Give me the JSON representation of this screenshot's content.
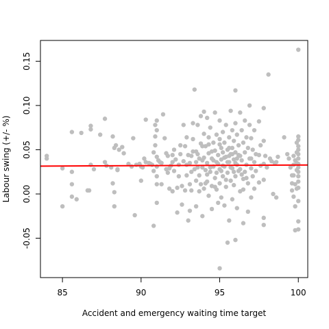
{
  "chart_data": {
    "type": "scatter",
    "title": "",
    "xlabel": "Accident and emergency waiting time target",
    "ylabel": "Labour swing (+/- %)",
    "xlim": [
      83.6,
      100.6
    ],
    "ylim": [
      -0.0945,
      0.1735
    ],
    "x_ticks": [
      85,
      90,
      95,
      100
    ],
    "x_tick_labels": [
      "85",
      "90",
      "95",
      "100"
    ],
    "y_ticks": [
      -0.05,
      0.0,
      0.05,
      0.1,
      0.15
    ],
    "y_tick_labels": [
      "-0.05",
      "0.00",
      "0.05",
      "0.10",
      "0.15"
    ],
    "grid": false,
    "point_color": "#bebebe",
    "trend_color": "#ff0000",
    "trend_line": {
      "x": [
        83.6,
        100.6
      ],
      "y": [
        0.0315,
        0.0327
      ]
    },
    "points": [
      [
        84.0,
        0.043
      ],
      [
        84.0,
        0.04
      ],
      [
        85.0,
        0.029
      ],
      [
        85.0,
        -0.014
      ],
      [
        85.6,
        0.07
      ],
      [
        85.6,
        0.025
      ],
      [
        85.6,
        0.011
      ],
      [
        85.6,
        -0.003
      ],
      [
        85.9,
        -0.006
      ],
      [
        86.2,
        0.069
      ],
      [
        86.6,
        0.004
      ],
      [
        86.7,
        0.004
      ],
      [
        86.8,
        0.077
      ],
      [
        86.8,
        0.073
      ],
      [
        86.8,
        0.033
      ],
      [
        87.0,
        0.028
      ],
      [
        87.4,
        0.067
      ],
      [
        87.7,
        0.085
      ],
      [
        87.7,
        0.036
      ],
      [
        87.8,
        0.032
      ],
      [
        88.1,
        0.03
      ],
      [
        88.2,
        0.012
      ],
      [
        88.2,
        0.065
      ],
      [
        88.3,
        0.052
      ],
      [
        88.3,
        0.002
      ],
      [
        88.3,
        -0.014
      ],
      [
        88.4,
        0.055
      ],
      [
        88.5,
        0.027
      ],
      [
        88.6,
        0.05
      ],
      [
        88.5,
        0.028
      ],
      [
        88.8,
        0.053
      ],
      [
        88.9,
        0.046
      ],
      [
        89.2,
        0.034
      ],
      [
        89.4,
        0.031
      ],
      [
        89.5,
        0.063
      ],
      [
        89.6,
        -0.024
      ],
      [
        89.7,
        0.033
      ],
      [
        89.9,
        0.034
      ],
      [
        90.0,
        0.031
      ],
      [
        90.1,
        0.03
      ],
      [
        90.0,
        0.015
      ],
      [
        90.2,
        0.04
      ],
      [
        90.3,
        0.036
      ],
      [
        90.3,
        0.084
      ],
      [
        90.5,
        0.035
      ],
      [
        90.6,
        0.034
      ],
      [
        90.7,
        0.033
      ],
      [
        90.8,
        0.047
      ],
      [
        90.8,
        0.026
      ],
      [
        90.8,
        -0.036
      ],
      [
        90.9,
        0.078
      ],
      [
        90.9,
        0.065
      ],
      [
        90.9,
        0.055
      ],
      [
        91.0,
        0.083
      ],
      [
        91.0,
        0.072
      ],
      [
        91.0,
        0.042
      ],
      [
        91.0,
        0.031
      ],
      [
        91.0,
        0.02
      ],
      [
        91.0,
        0.011
      ],
      [
        91.0,
        -0.01
      ],
      [
        91.1,
        0.038
      ],
      [
        91.2,
        0.036
      ],
      [
        91.3,
        0.035
      ],
      [
        91.3,
        0.011
      ],
      [
        91.4,
        0.09
      ],
      [
        91.5,
        0.063
      ],
      [
        91.6,
        0.046
      ],
      [
        91.7,
        0.043
      ],
      [
        91.7,
        0.024
      ],
      [
        91.8,
        0.029
      ],
      [
        91.8,
        0.006
      ],
      [
        91.9,
        0.032
      ],
      [
        92.0,
        0.036
      ],
      [
        92.0,
        0.003
      ],
      [
        92.1,
        0.05
      ],
      [
        92.1,
        0.026
      ],
      [
        92.2,
        0.039
      ],
      [
        92.3,
        0.007
      ],
      [
        92.3,
        -0.021
      ],
      [
        92.4,
        0.033
      ],
      [
        92.5,
        0.055
      ],
      [
        92.5,
        0.045
      ],
      [
        92.6,
        0.009
      ],
      [
        92.6,
        -0.012
      ],
      [
        92.7,
        0.078
      ],
      [
        92.7,
        0.037
      ],
      [
        92.8,
        0.004
      ],
      [
        92.8,
        0.054
      ],
      [
        92.9,
        0.064
      ],
      [
        92.9,
        0.021
      ],
      [
        93.0,
        0.044
      ],
      [
        93.0,
        -0.03
      ],
      [
        93.1,
        0.035
      ],
      [
        93.1,
        0.011
      ],
      [
        93.1,
        -0.019
      ],
      [
        93.2,
        0.043
      ],
      [
        93.2,
        0.004
      ],
      [
        93.3,
        0.08
      ],
      [
        93.3,
        0.062
      ],
      [
        93.4,
        0.118
      ],
      [
        93.4,
        0.028
      ],
      [
        93.5,
        0.048
      ],
      [
        93.5,
        0.015
      ],
      [
        93.5,
        -0.014
      ],
      [
        93.6,
        0.078
      ],
      [
        93.6,
        0.045
      ],
      [
        93.6,
        0.03
      ],
      [
        93.7,
        0.003
      ],
      [
        93.7,
        0.021
      ],
      [
        93.8,
        0.088
      ],
      [
        93.8,
        0.057
      ],
      [
        93.8,
        0.011
      ],
      [
        93.9,
        0.038
      ],
      [
        93.9,
        -0.025
      ],
      [
        94.0,
        0.093
      ],
      [
        94.0,
        0.068
      ],
      [
        94.0,
        0.041
      ],
      [
        94.0,
        0.006
      ],
      [
        94.1,
        0.054
      ],
      [
        94.1,
        0.027
      ],
      [
        94.2,
        0.086
      ],
      [
        94.2,
        0.035
      ],
      [
        94.2,
        0.014
      ],
      [
        94.3,
        0.064
      ],
      [
        94.3,
        0.046
      ],
      [
        94.3,
        -0.002
      ],
      [
        94.4,
        0.025
      ],
      [
        94.4,
        0.075
      ],
      [
        94.5,
        0.04
      ],
      [
        94.5,
        0.009
      ],
      [
        94.5,
        -0.017
      ],
      [
        94.6,
        0.058
      ],
      [
        94.6,
        0.031
      ],
      [
        94.7,
        0.092
      ],
      [
        94.7,
        0.049
      ],
      [
        94.7,
        0.018
      ],
      [
        94.8,
        0.067
      ],
      [
        94.8,
        0.036
      ],
      [
        94.8,
        0.005
      ],
      [
        94.9,
        0.044
      ],
      [
        94.9,
        -0.01
      ],
      [
        95.0,
        -0.084
      ],
      [
        95.0,
        0.083
      ],
      [
        95.0,
        0.056
      ],
      [
        95.0,
        0.028
      ],
      [
        95.0,
        0.012
      ],
      [
        95.1,
        0.039
      ],
      [
        95.1,
        -0.004
      ],
      [
        95.2,
        0.07
      ],
      [
        95.2,
        0.047
      ],
      [
        95.2,
        0.02
      ],
      [
        95.3,
        0.058
      ],
      [
        95.3,
        0.031
      ],
      [
        95.3,
        -0.013
      ],
      [
        95.4,
        0.078
      ],
      [
        95.4,
        0.042
      ],
      [
        95.4,
        0.008
      ],
      [
        95.5,
        -0.055
      ],
      [
        95.5,
        0.05
      ],
      [
        95.5,
        0.024
      ],
      [
        95.6,
        0.064
      ],
      [
        95.6,
        0.036
      ],
      [
        95.6,
        -0.03
      ],
      [
        95.7,
        0.094
      ],
      [
        95.7,
        0.045
      ],
      [
        95.7,
        0.015
      ],
      [
        95.8,
        0.072
      ],
      [
        95.8,
        0.052
      ],
      [
        95.8,
        0.029
      ],
      [
        95.8,
        -0.006
      ],
      [
        95.9,
        0.06
      ],
      [
        95.9,
        0.039
      ],
      [
        96.0,
        0.117
      ],
      [
        96.0,
        0.08
      ],
      [
        96.0,
        0.047
      ],
      [
        96.0,
        0.02
      ],
      [
        96.0,
        -0.052
      ],
      [
        96.1,
        0.067
      ],
      [
        96.1,
        0.033
      ],
      [
        96.1,
        -0.016
      ],
      [
        96.2,
        0.055
      ],
      [
        96.2,
        0.026
      ],
      [
        96.3,
        0.092
      ],
      [
        96.3,
        0.043
      ],
      [
        96.3,
        0.003
      ],
      [
        96.4,
        0.072
      ],
      [
        96.4,
        0.038
      ],
      [
        96.5,
        0.058
      ],
      [
        96.5,
        0.017
      ],
      [
        96.5,
        -0.033
      ],
      [
        96.6,
        0.083
      ],
      [
        96.6,
        0.047
      ],
      [
        96.6,
        0.025
      ],
      [
        96.7,
        0.064
      ],
      [
        96.7,
        0.033
      ],
      [
        96.8,
        -0.02
      ],
      [
        96.8,
        0.052
      ],
      [
        96.8,
        0.012
      ],
      [
        96.9,
        0.1
      ],
      [
        96.9,
        0.078
      ],
      [
        96.9,
        0.04
      ],
      [
        97.0,
        0.063
      ],
      [
        97.0,
        0.029
      ],
      [
        97.0,
        -0.004
      ],
      [
        97.1,
        0.05
      ],
      [
        97.1,
        0.02
      ],
      [
        97.2,
        0.072
      ],
      [
        97.2,
        0.036
      ],
      [
        97.2,
        0.006
      ],
      [
        97.3,
        0.045
      ],
      [
        97.3,
        0.026
      ],
      [
        97.5,
        0.082
      ],
      [
        97.5,
        0.044
      ],
      [
        97.5,
        0.013
      ],
      [
        97.6,
        0.055
      ],
      [
        97.6,
        0.032
      ],
      [
        97.8,
        0.097
      ],
      [
        97.8,
        0.06
      ],
      [
        97.8,
        0.034
      ],
      [
        97.8,
        0.016
      ],
      [
        97.8,
        -0.027
      ],
      [
        97.8,
        -0.035
      ],
      [
        97.9,
        0.043
      ],
      [
        98.0,
        0.03
      ],
      [
        98.1,
        0.135
      ],
      [
        98.2,
        0.04
      ],
      [
        98.3,
        0.037
      ],
      [
        98.4,
        0.0
      ],
      [
        98.5,
        0.035
      ],
      [
        98.6,
        0.036
      ],
      [
        98.6,
        -0.004
      ],
      [
        98.7,
        0.042
      ],
      [
        99.1,
        0.064
      ],
      [
        99.3,
        0.045
      ],
      [
        99.4,
        0.04
      ],
      [
        99.5,
        0.03
      ],
      [
        99.6,
        0.021
      ],
      [
        99.6,
        0.012
      ],
      [
        99.6,
        0.004
      ],
      [
        99.7,
        0.043
      ],
      [
        99.7,
        0.033
      ],
      [
        99.7,
        0.021
      ],
      [
        99.7,
        -0.003
      ],
      [
        99.8,
        0.038
      ],
      [
        99.8,
        0.011
      ],
      [
        99.8,
        -0.041
      ],
      [
        99.8,
        -0.014
      ],
      [
        99.9,
        0.058
      ],
      [
        99.9,
        0.047
      ],
      [
        99.9,
        0.035
      ],
      [
        99.9,
        0.027
      ],
      [
        99.9,
        0.006
      ],
      [
        100.0,
        0.163
      ],
      [
        100.0,
        0.061
      ],
      [
        100.0,
        0.054
      ],
      [
        100.0,
        0.045
      ],
      [
        100.0,
        0.04
      ],
      [
        100.0,
        0.034
      ],
      [
        100.0,
        0.03
      ],
      [
        100.0,
        0.025
      ],
      [
        100.0,
        0.02
      ],
      [
        100.0,
        0.014
      ],
      [
        100.0,
        0.007
      ],
      [
        100.0,
        -0.008
      ],
      [
        100.0,
        -0.031
      ],
      [
        100.0,
        -0.04
      ],
      [
        100.0,
        0.05
      ],
      [
        100.0,
        0.065
      ],
      [
        94.4,
        0.03
      ],
      [
        94.6,
        0.038
      ],
      [
        94.9,
        0.034
      ],
      [
        95.1,
        0.026
      ],
      [
        95.3,
        0.041
      ],
      [
        95.5,
        0.036
      ],
      [
        95.7,
        0.03
      ],
      [
        95.9,
        0.025
      ],
      [
        96.1,
        0.04
      ],
      [
        96.3,
        0.028
      ],
      [
        94.2,
        0.022
      ],
      [
        94.8,
        0.024
      ],
      [
        95.2,
        0.032
      ],
      [
        95.6,
        0.043
      ],
      [
        96.0,
        0.035
      ],
      [
        96.4,
        0.022
      ],
      [
        93.9,
        0.03
      ],
      [
        93.5,
        0.036
      ],
      [
        93.2,
        0.025
      ],
      [
        92.9,
        0.033
      ],
      [
        94.1,
        0.012
      ],
      [
        94.7,
        0.008
      ],
      [
        95.4,
        0.016
      ],
      [
        95.9,
        0.01
      ],
      [
        96.5,
        0.005
      ],
      [
        93.7,
        0.04
      ],
      [
        94.3,
        0.056
      ],
      [
        95.0,
        0.062
      ],
      [
        95.6,
        0.052
      ],
      [
        96.2,
        0.044
      ],
      [
        97.0,
        0.04
      ],
      [
        96.7,
        0.018
      ],
      [
        92.4,
        0.02
      ],
      [
        92.0,
        0.044
      ],
      [
        91.6,
        0.028
      ],
      [
        95.8,
        0.045
      ],
      [
        95.1,
        0.052
      ],
      [
        94.5,
        0.048
      ],
      [
        93.9,
        0.054
      ],
      [
        93.3,
        0.048
      ]
    ]
  }
}
